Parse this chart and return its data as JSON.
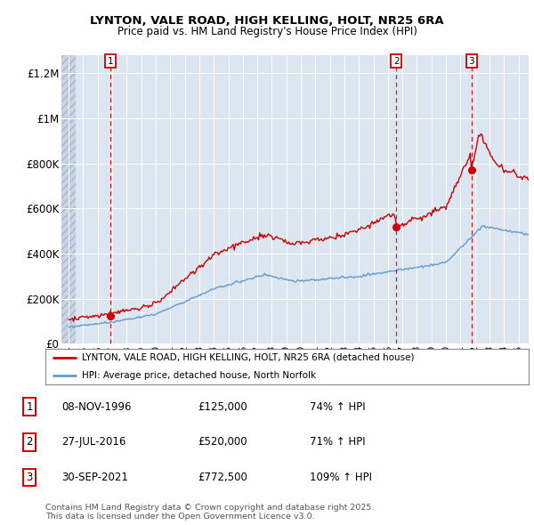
{
  "title1": "LYNTON, VALE ROAD, HIGH KELLING, HOLT, NR25 6RA",
  "title2": "Price paid vs. HM Land Registry's House Price Index (HPI)",
  "ylabel_ticks": [
    "£0",
    "£200K",
    "£400K",
    "£600K",
    "£800K",
    "£1M",
    "£1.2M"
  ],
  "ytick_values": [
    0,
    200000,
    400000,
    600000,
    800000,
    1000000,
    1200000
  ],
  "ylim": [
    0,
    1280000
  ],
  "xlim_start": 1993.5,
  "xlim_end": 2025.7,
  "sale_dates": [
    1996.86,
    2016.58,
    2021.75
  ],
  "sale_prices": [
    125000,
    520000,
    772500
  ],
  "sale_labels": [
    "1",
    "2",
    "3"
  ],
  "legend_line1": "LYNTON, VALE ROAD, HIGH KELLING, HOLT, NR25 6RA (detached house)",
  "legend_line2": "HPI: Average price, detached house, North Norfolk",
  "table_rows": [
    [
      "1",
      "08-NOV-1996",
      "£125,000",
      "74% ↑ HPI"
    ],
    [
      "2",
      "27-JUL-2016",
      "£520,000",
      "71% ↑ HPI"
    ],
    [
      "3",
      "30-SEP-2021",
      "£772,500",
      "109% ↑ HPI"
    ]
  ],
  "footnote": "Contains HM Land Registry data © Crown copyright and database right 2025.\nThis data is licensed under the Open Government Licence v3.0.",
  "red_color": "#cc0000",
  "blue_color": "#6699cc",
  "bg_color": "#dce6f1",
  "grid_color": "#ffffff"
}
